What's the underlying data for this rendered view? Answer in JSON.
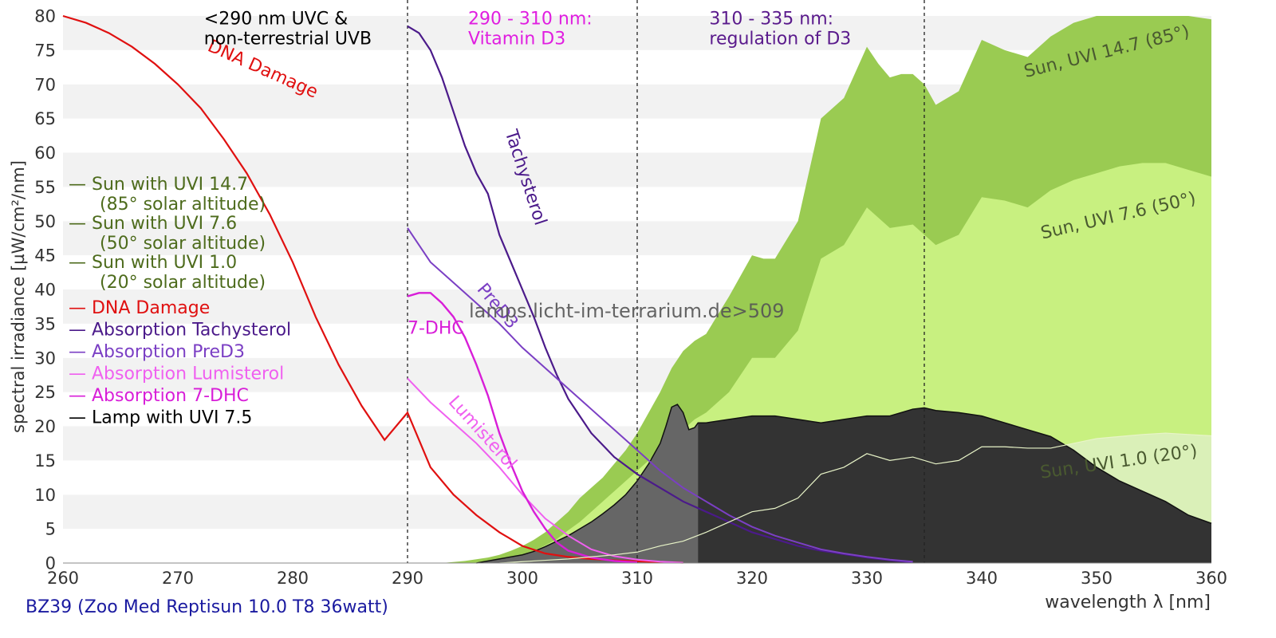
{
  "chart_data": {
    "type": "area",
    "title": "",
    "xlabel": "wavelength λ [nm]",
    "ylabel": "spectral irradiance [µW/cm²/nm]",
    "xlim": [
      260,
      360
    ],
    "ylim": [
      0,
      80
    ],
    "x_ticks": [
      260,
      270,
      280,
      290,
      300,
      310,
      320,
      330,
      340,
      350,
      360
    ],
    "y_ticks": [
      0,
      5,
      10,
      15,
      20,
      25,
      30,
      35,
      40,
      45,
      50,
      55,
      60,
      65,
      70,
      75,
      80
    ],
    "grid": "horizontal bands",
    "footer": "BZ39 (Zoo Med Reptisun 10.0 T8 36watt)",
    "watermark": "lamps.licht-im-terrarium.de>509",
    "region_lines": [
      290,
      310,
      335
    ],
    "region_labels": [
      {
        "x": 272,
        "y": 79.5,
        "lines": [
          "<290 nm UVC &",
          "non-terrestrial UVB"
        ],
        "color": "#000000"
      },
      {
        "x": 295,
        "y": 79.5,
        "lines": [
          "290 - 310 nm:",
          "Vitamin D3"
        ],
        "color": "#e01ee0"
      },
      {
        "x": 316,
        "y": 79.5,
        "lines": [
          "310 - 335 nm:",
          "regulation of D3"
        ],
        "color": "#5a1a8c"
      }
    ],
    "legend": [
      {
        "line1": "— Sun with UVI 14.7",
        "line2": "(85° solar altitude)",
        "color": "#4d6b1c"
      },
      {
        "line1": "— Sun with UVI 7.6",
        "line2": "(50° solar altitude)",
        "color": "#4d6b1c"
      },
      {
        "line1": "— Sun with UVI 1.0",
        "line2": "(20° solar altitude)",
        "color": "#4d6b1c"
      },
      {
        "line1": "— DNA Damage",
        "color": "#e01010"
      },
      {
        "line1": "— Absorption Tachysterol",
        "color": "#4b1a8a"
      },
      {
        "line1": "— Absorption PreD3",
        "color": "#7b3fc4"
      },
      {
        "line1": "— Absorption Lumisterol",
        "color": "#f060f0"
      },
      {
        "line1": "— Absorption 7-DHC",
        "color": "#d81ed8"
      },
      {
        "line1": "— Lamp with UVI 7.5",
        "color": "#000000"
      }
    ],
    "series": [
      {
        "name": "Sun, UVI 14.7 (85°)",
        "kind": "area",
        "color": "#9acb52",
        "label": {
          "text": "Sun, UVI 14.7 (85°)",
          "x": 351,
          "y": 74,
          "rot": -14,
          "color": "#4a5a30"
        },
        "x": [
          293,
          295,
          297,
          298,
          299,
          300,
          301,
          302,
          303,
          304,
          305,
          306,
          307,
          308,
          309,
          310,
          311,
          312,
          313,
          314,
          315,
          316,
          318,
          320,
          321,
          322,
          324,
          326,
          328,
          330,
          331,
          332,
          333,
          334,
          335,
          336,
          338,
          340,
          342,
          344,
          346,
          348,
          350,
          352,
          354,
          356,
          358,
          360
        ],
        "y": [
          0,
          0.3,
          0.8,
          1.2,
          1.8,
          2.5,
          3.4,
          4.5,
          6,
          7.5,
          9.5,
          11,
          12.5,
          14.5,
          16.5,
          19,
          22,
          25,
          28.5,
          31,
          32.5,
          33.5,
          39,
          45,
          44.5,
          44.5,
          50,
          65,
          68,
          75.5,
          73,
          71,
          71.5,
          71.5,
          70,
          67,
          69,
          76.5,
          75,
          74,
          77,
          79,
          80.5,
          81.5,
          82,
          81,
          80,
          79.5
        ]
      },
      {
        "name": "Sun, UVI 7.6 (50°)",
        "kind": "area",
        "color": "#c8f080",
        "label": {
          "text": "Sun, UVI 7.6 (50°)",
          "x": 352,
          "y": 50,
          "rot": -13,
          "color": "#4a5a30"
        },
        "x": [
          296,
          298,
          300,
          301,
          302,
          303,
          304,
          305,
          306,
          307,
          308,
          309,
          310,
          311,
          312,
          313,
          314,
          315,
          316,
          318,
          320,
          322,
          324,
          326,
          328,
          330,
          332,
          334,
          336,
          338,
          340,
          342,
          344,
          346,
          348,
          350,
          352,
          354,
          356,
          358,
          360
        ],
        "y": [
          0,
          0.5,
          1.2,
          1.8,
          2.6,
          3.5,
          4.8,
          6,
          7.5,
          9,
          10.5,
          12,
          13.5,
          15,
          16.5,
          18,
          19.5,
          21,
          22,
          25,
          30,
          30,
          34,
          44.5,
          46.5,
          52,
          49,
          49.5,
          46.5,
          48,
          53.5,
          53,
          52,
          54.5,
          56,
          57,
          58,
          58.5,
          58.5,
          57.5,
          56.5
        ]
      },
      {
        "name": "Sun, UVI 1.0 (20°)",
        "kind": "area",
        "color": "#daf0b8",
        "label": {
          "text": "Sun, UVI 1.0 (20°)",
          "x": 352,
          "y": 14,
          "rot": -8,
          "color": "#4a5a30"
        },
        "x": [
          298,
          300,
          302,
          304,
          306,
          308,
          310,
          312,
          314,
          316,
          318,
          320,
          322,
          324,
          326,
          328,
          330,
          332,
          334,
          336,
          338,
          340,
          342,
          344,
          346,
          348,
          350,
          352,
          354,
          356,
          358,
          360
        ],
        "y": [
          0,
          0.2,
          0.4,
          0.6,
          0.9,
          1.2,
          1.6,
          2.5,
          3.2,
          4.5,
          6,
          7.5,
          8,
          9.5,
          13,
          14,
          16,
          15,
          15.5,
          14.5,
          15,
          17,
          17,
          16.8,
          16.8,
          17.5,
          18.2,
          18.5,
          18.8,
          19,
          18.8,
          18.6
        ]
      },
      {
        "name": "Lamp with UVI 7.5",
        "kind": "lamp",
        "color": "#333333",
        "shade_until": 315.3,
        "shade_color": "#666666",
        "x": [
          296,
          298,
          300,
          301,
          302,
          303,
          304,
          305,
          306,
          307,
          308,
          309,
          310,
          311,
          312,
          312.5,
          313,
          313.5,
          314,
          314.5,
          315,
          315.3,
          316,
          318,
          320,
          322,
          324,
          326,
          328,
          330,
          332,
          334,
          335,
          336,
          338,
          340,
          342,
          344,
          346,
          348,
          350,
          352,
          354,
          356,
          358,
          360
        ],
        "y": [
          0,
          0.6,
          1.2,
          1.7,
          2.4,
          3.2,
          4,
          5,
          6,
          7.2,
          8.5,
          10,
          12,
          14.5,
          17.5,
          20,
          22.8,
          23.2,
          22,
          19.5,
          19.8,
          20.5,
          20.5,
          21,
          21.5,
          21.5,
          21,
          20.5,
          21,
          21.5,
          21.5,
          22.5,
          22.7,
          22.3,
          22,
          21.5,
          20.5,
          19.5,
          18.5,
          16.5,
          14,
          12,
          10.5,
          9,
          7,
          5.8
        ]
      },
      {
        "name": "DNA Damage",
        "kind": "line",
        "color": "#e01010",
        "width": 2.2,
        "label": {
          "text": "DNA Damage",
          "x": 272.5,
          "y": 75,
          "rot": 24,
          "color": "#e01010"
        },
        "x": [
          260,
          262,
          264,
          266,
          268,
          270,
          272,
          274,
          276,
          278,
          280,
          282,
          284,
          286,
          288,
          290,
          292,
          294,
          296,
          298,
          300,
          302,
          304,
          306,
          308,
          310,
          312,
          314
        ],
        "y": [
          80,
          79,
          77.5,
          75.5,
          73,
          70,
          66.5,
          62,
          57,
          51,
          44,
          36,
          29,
          23,
          18,
          22,
          14,
          10,
          7,
          4.5,
          2.5,
          1.4,
          0.9,
          0.6,
          0.4,
          0.25,
          0.15,
          0.05
        ]
      },
      {
        "name": "Absorption Tachysterol",
        "kind": "line",
        "color": "#4b1a8a",
        "width": 2.2,
        "label": {
          "text": "Tachysterol",
          "x": 298.5,
          "y": 63,
          "rot": 72,
          "color": "#4b1a8a"
        },
        "x": [
          290,
          291,
          292,
          293,
          294,
          295,
          296,
          297,
          298,
          299,
          300,
          301,
          302,
          303,
          304,
          306,
          308,
          310,
          312,
          314,
          316,
          318,
          320,
          322,
          324,
          326,
          328,
          330,
          332,
          334
        ],
        "y": [
          78.5,
          77.5,
          75,
          71,
          66,
          61,
          57,
          54,
          48,
          44,
          40,
          36,
          31.5,
          27.5,
          24,
          19,
          15.5,
          13,
          11,
          9,
          7.5,
          6,
          4.5,
          3.5,
          2.5,
          1.8,
          1.3,
          0.8,
          0.4,
          0.1
        ]
      },
      {
        "name": "Absorption PreD3",
        "kind": "line",
        "color": "#7b3fc4",
        "width": 2,
        "label": {
          "text": "PreD3",
          "x": 296,
          "y": 40,
          "rot": 50,
          "color": "#7b3fc4"
        },
        "x": [
          290,
          292,
          294,
          296,
          298,
          300,
          302,
          304,
          306,
          308,
          310,
          312,
          314,
          316,
          318,
          320,
          322,
          324,
          326,
          328,
          330,
          332,
          334
        ],
        "y": [
          49,
          44,
          41,
          38,
          35,
          31.5,
          28.5,
          25.5,
          22.5,
          19.5,
          16.5,
          13.5,
          11,
          9,
          7,
          5.3,
          4,
          3,
          2,
          1.4,
          0.9,
          0.5,
          0.2
        ]
      },
      {
        "name": "Absorption Lumisterol",
        "kind": "line",
        "color": "#f060f0",
        "width": 2,
        "label": {
          "text": "Lumisterol",
          "x": 293.5,
          "y": 23.5,
          "rot": 48,
          "color": "#f060f0"
        },
        "x": [
          290,
          292,
          294,
          296,
          298,
          300,
          302,
          304,
          306,
          308,
          310,
          312,
          314
        ],
        "y": [
          27,
          23.5,
          20.5,
          17.5,
          14,
          10,
          6.5,
          4,
          2,
          1,
          0.5,
          0.2,
          0.05
        ]
      },
      {
        "name": "Absorption 7-DHC",
        "kind": "line",
        "color": "#d81ed8",
        "width": 2.4,
        "label": {
          "text": "7-DHC",
          "x": 290,
          "y": 33.5,
          "rot": 0,
          "color": "#d81ed8"
        },
        "x": [
          290,
          291,
          292,
          293,
          294,
          295,
          296,
          297,
          298,
          299,
          300,
          301,
          302,
          303,
          304,
          306,
          308,
          310
        ],
        "y": [
          39,
          39.5,
          39.5,
          38,
          36,
          33,
          29,
          24.5,
          19,
          14.5,
          10.5,
          7.5,
          5,
          3,
          1.8,
          0.8,
          0.3,
          0.1
        ]
      }
    ]
  }
}
